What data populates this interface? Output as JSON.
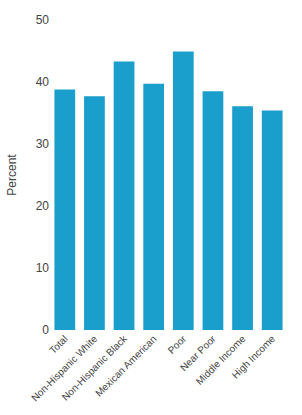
{
  "chart_data": {
    "type": "bar",
    "categories": [
      "Total",
      "Non-Hispanic White",
      "Non-Hispanic Black",
      "Mexican American",
      "Poor",
      "Near Poor",
      "Middle Income",
      "High Income"
    ],
    "values": [
      38.8,
      37.7,
      43.3,
      39.7,
      44.9,
      38.5,
      36.1,
      35.4
    ],
    "color": "#1a9ecc",
    "ylabel": "Percent",
    "ylim": [
      0,
      50
    ],
    "yticks": [
      0,
      10,
      20,
      30,
      40,
      50
    ],
    "grid": false
  }
}
